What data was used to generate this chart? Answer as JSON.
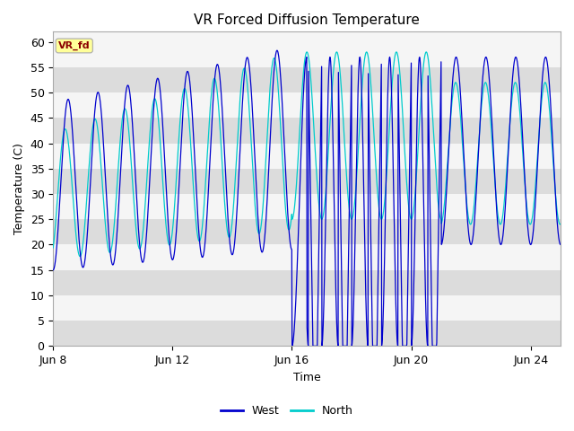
{
  "title": "VR Forced Diffusion Temperature",
  "xlabel": "Time",
  "ylabel": "Temperature (C)",
  "ylim": [
    0,
    62
  ],
  "west_color": "#0000CD",
  "north_color": "#00CCCC",
  "label_text": "VR_fd",
  "label_bg": "#FFFF99",
  "label_text_color": "#8B0000",
  "legend_west": "West",
  "legend_north": "North",
  "band_light": "#F5F5F5",
  "band_dark": "#DCDCDC",
  "title_fontsize": 11,
  "axis_fontsize": 9,
  "tick_fontsize": 9,
  "tick_positions": [
    0,
    4,
    8,
    12,
    16
  ],
  "tick_labels": [
    "Jun 8",
    "Jun 12",
    "Jun 16",
    "Jun 20",
    "Jun 24"
  ],
  "y_ticks": [
    0,
    5,
    10,
    15,
    20,
    25,
    30,
    35,
    40,
    45,
    50,
    55,
    60
  ]
}
